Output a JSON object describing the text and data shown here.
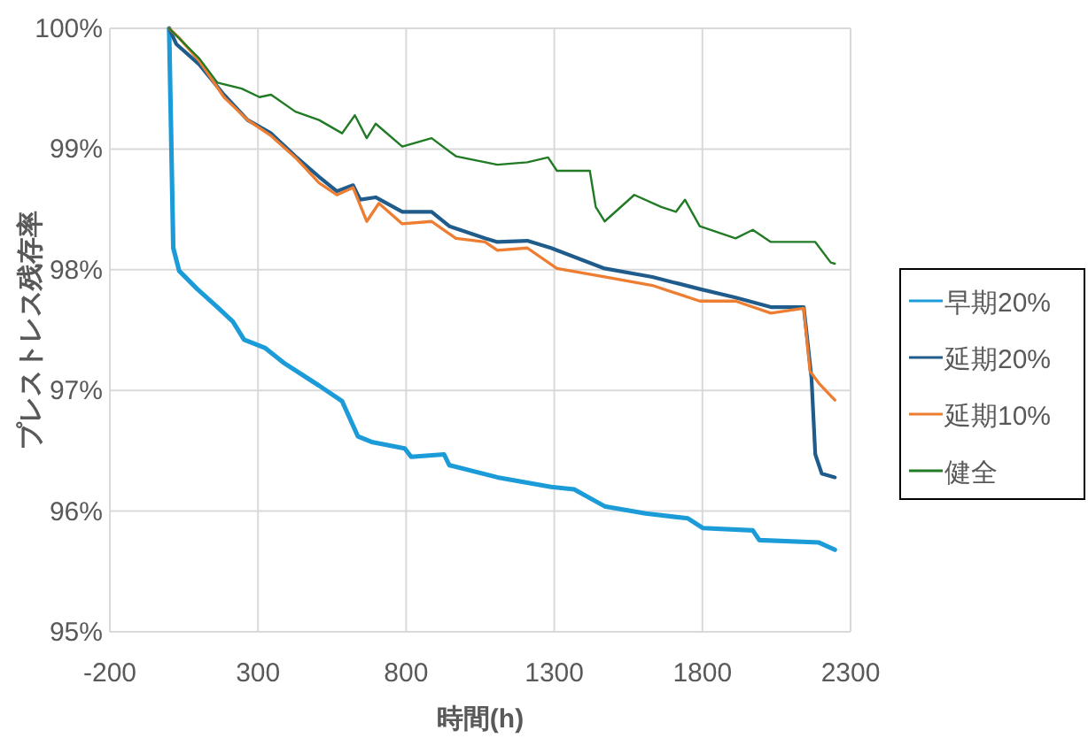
{
  "chart_data": {
    "type": "line",
    "xlabel": "時間(h)",
    "ylabel": "プレストレス残存率",
    "xlim": [
      -200,
      2300
    ],
    "ylim": [
      95,
      100
    ],
    "xticks": [
      -200,
      300,
      800,
      1300,
      1800,
      2300
    ],
    "yticks": [
      {
        "value": 95,
        "label": "95%"
      },
      {
        "value": 96,
        "label": "96%"
      },
      {
        "value": 97,
        "label": "97%"
      },
      {
        "value": 98,
        "label": "98%"
      },
      {
        "value": 99,
        "label": "99%"
      },
      {
        "value": 100,
        "label": "100%"
      }
    ],
    "grid": true,
    "legend": "right",
    "marker": "none",
    "line_style": "solid",
    "series": [
      {
        "name": "早期20%",
        "color": "#1b9cd8",
        "x": [
          0,
          14,
          34,
          95,
          163,
          215,
          253,
          325,
          386,
          506,
          584,
          637,
          687,
          795,
          817,
          928,
          946,
          1108,
          1289,
          1367,
          1470,
          1608,
          1751,
          1801,
          1970,
          1992,
          2193,
          2247
        ],
        "values": [
          100,
          98.18,
          97.99,
          97.84,
          97.69,
          97.57,
          97.42,
          97.35,
          97.23,
          97.04,
          96.91,
          96.62,
          96.57,
          96.52,
          96.45,
          96.47,
          96.38,
          96.28,
          96.2,
          96.18,
          96.04,
          95.98,
          95.94,
          95.86,
          95.84,
          95.76,
          95.74,
          95.68
        ]
      },
      {
        "name": "延期20%",
        "color": "#1f5c8b",
        "x": [
          0,
          24,
          102,
          185,
          265,
          344,
          426,
          506,
          566,
          621,
          645,
          697,
          787,
          886,
          946,
          1066,
          1108,
          1209,
          1289,
          1470,
          1631,
          1791,
          1912,
          2031,
          2142,
          2168,
          2181,
          2203,
          2247
        ],
        "values": [
          100,
          99.87,
          99.7,
          99.45,
          99.24,
          99.13,
          98.94,
          98.77,
          98.65,
          98.7,
          98.58,
          98.6,
          98.48,
          98.48,
          98.36,
          98.26,
          98.23,
          98.24,
          98.18,
          98.01,
          97.94,
          97.84,
          97.77,
          97.69,
          97.69,
          97.11,
          96.47,
          96.31,
          96.28
        ]
      },
      {
        "name": "延期10%",
        "color": "#ed7d31",
        "x": [
          0,
          34,
          102,
          185,
          265,
          344,
          426,
          506,
          566,
          621,
          667,
          708,
          787,
          886,
          968,
          1066,
          1108,
          1209,
          1309,
          1470,
          1631,
          1791,
          1912,
          2031,
          2142,
          2163,
          2193,
          2247
        ],
        "values": [
          100,
          99.92,
          99.73,
          99.43,
          99.24,
          99.11,
          98.93,
          98.72,
          98.62,
          98.68,
          98.4,
          98.55,
          98.38,
          98.4,
          98.26,
          98.23,
          98.16,
          98.18,
          98.01,
          97.94,
          97.87,
          97.74,
          97.74,
          97.64,
          97.68,
          97.16,
          97.06,
          96.92
        ]
      },
      {
        "name": "健全",
        "color": "#217a24",
        "x": [
          0,
          102,
          163,
          245,
          305,
          344,
          426,
          506,
          584,
          627,
          667,
          697,
          787,
          886,
          968,
          1108,
          1209,
          1279,
          1309,
          1420,
          1440,
          1470,
          1570,
          1661,
          1711,
          1741,
          1791,
          1912,
          1970,
          2031,
          2181,
          2233,
          2247
        ],
        "values": [
          100,
          99.75,
          99.55,
          99.5,
          99.43,
          99.45,
          99.31,
          99.24,
          99.13,
          99.28,
          99.09,
          99.21,
          99.02,
          99.09,
          98.94,
          98.87,
          98.89,
          98.93,
          98.82,
          98.82,
          98.52,
          98.4,
          98.62,
          98.52,
          98.48,
          98.58,
          98.36,
          98.26,
          98.33,
          98.23,
          98.23,
          98.06,
          98.05
        ]
      }
    ]
  }
}
